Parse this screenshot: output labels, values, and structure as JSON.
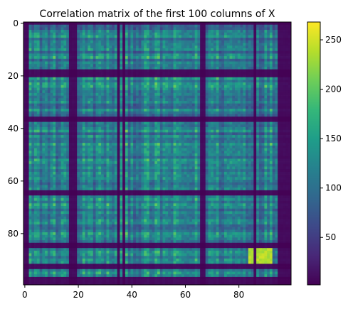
{
  "chart_data": {
    "type": "heatmap",
    "title": "Correlation matrix of the first 100 columns of X",
    "rows": 100,
    "cols": 100,
    "x_ticks": [
      0,
      20,
      40,
      60,
      80
    ],
    "y_ticks": [
      0,
      20,
      40,
      60,
      80
    ],
    "xlim": [
      -0.5,
      99.5
    ],
    "ylim": [
      99.5,
      -0.5
    ],
    "colorbar": {
      "min": 2,
      "max": 268,
      "ticks": [
        50,
        100,
        150,
        200,
        250
      ],
      "colormap": "viridis"
    },
    "dark_row_indices": [
      0,
      18,
      19,
      20,
      36,
      37,
      64,
      65,
      84,
      85,
      92,
      93,
      97,
      98,
      99
    ],
    "dark_col_indices": [
      0,
      1,
      17,
      18,
      19,
      35,
      37,
      66,
      67,
      86,
      95,
      96,
      97,
      98,
      99
    ],
    "hot_region": {
      "rows": [
        84,
        93
      ],
      "cols": [
        84,
        92
      ],
      "value": 250
    },
    "grid": false,
    "legend": "colorbar-right"
  },
  "colors": {
    "viridis_stops": [
      "#440154",
      "#482878",
      "#3e4989",
      "#31688e",
      "#26828e",
      "#1f9e89",
      "#35b779",
      "#6ece58",
      "#b5de2b",
      "#fde725"
    ]
  }
}
